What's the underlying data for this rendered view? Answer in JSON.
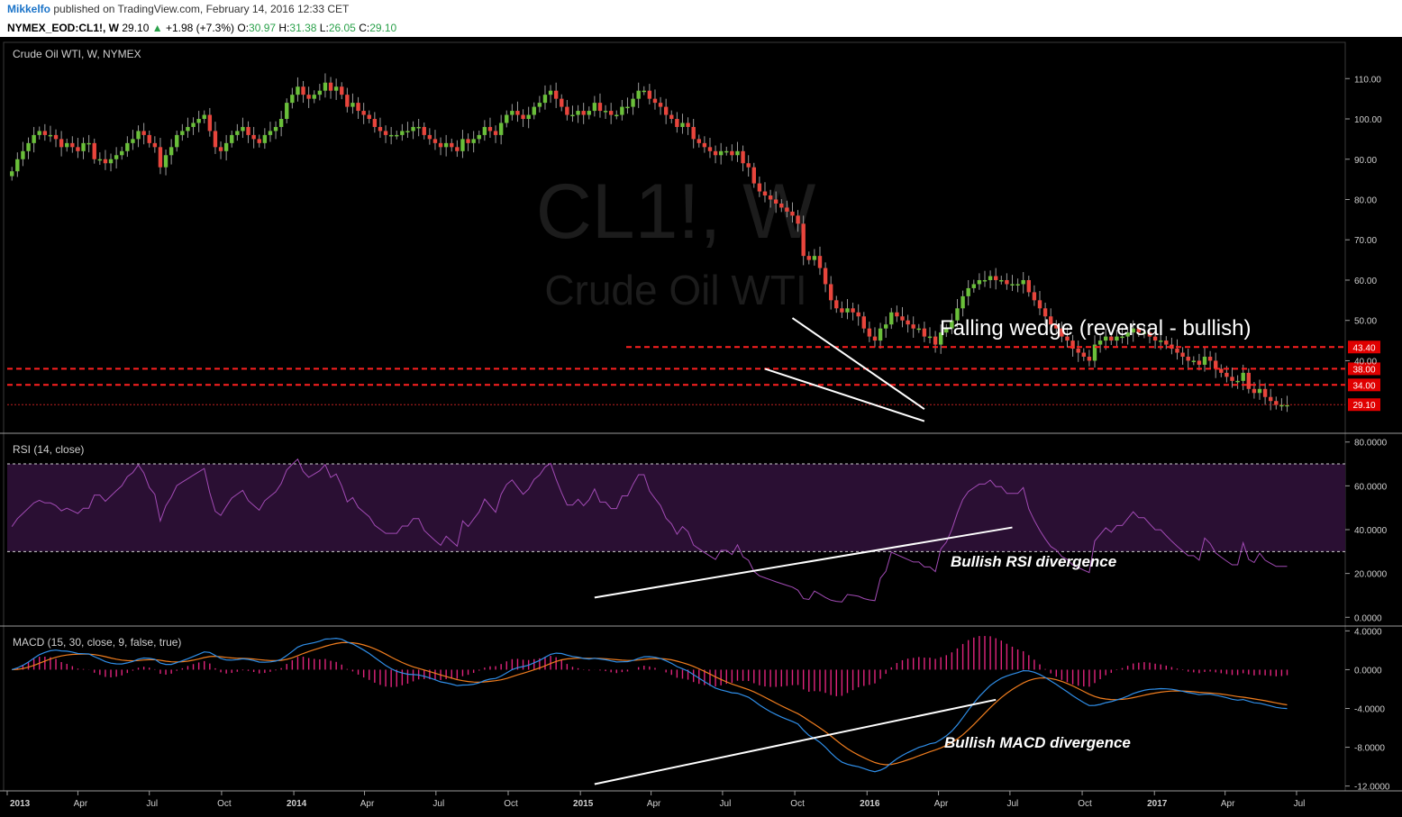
{
  "header": {
    "author": "Mikkelfo",
    "published": "published on TradingView.com, February 14, 2016 12:33 CET",
    "symbol": "NYMEX_EOD:CL1!, W",
    "last": "29.10",
    "arrow": "▲",
    "change": "+1.98 (+7.3%)",
    "o_label": "O:",
    "o_val": "30.97",
    "h_label": "H:",
    "h_val": "31.38",
    "l_label": "L:",
    "l_val": "26.05",
    "c_label": "C:",
    "c_val": "29.10"
  },
  "colors": {
    "background": "#000000",
    "up_candle": "#6abf3a",
    "down_candle": "#e8453c",
    "rsi_line": "#a24bb5",
    "rsi_band": "#2a0f33",
    "macd_line": "#2f8ee8",
    "signal_line": "#f07d1e",
    "histogram": "#e0247c",
    "level_line": "#ff2020",
    "annotation": "#ffffff"
  },
  "chart_data": [
    {
      "type": "candlestick",
      "title": "Crude Oil WTI, W, NYMEX",
      "watermark_symbol": "CL1!, W",
      "watermark_name": "Crude Oil WTI",
      "ylim": [
        22,
        119
      ],
      "y_ticks": [
        "110.00",
        "100.00",
        "90.00",
        "80.00",
        "70.00",
        "60.00",
        "50.00",
        "40.00"
      ],
      "y_tick_values": [
        110,
        100,
        90,
        80,
        70,
        60,
        50,
        40
      ],
      "x_ticks": [
        "2013",
        "Apr",
        "Jul",
        "Oct",
        "2014",
        "Apr",
        "Jul",
        "Oct",
        "2015",
        "Apr",
        "Jul",
        "Oct",
        "2016",
        "Apr",
        "Jul",
        "Oct",
        "2017",
        "Apr",
        "Jul"
      ],
      "x_tick_dates": [
        "2013-01",
        "2013-04",
        "2013-07",
        "2013-10",
        "2014-01",
        "2014-04",
        "2014-07",
        "2014-10",
        "2015-01",
        "2015-04",
        "2015-07",
        "2015-10",
        "2016-01",
        "2016-04",
        "2016-07",
        "2016-10",
        "2017-01",
        "2017-04",
        "2017-07"
      ],
      "x_tick_bold": [
        "2013",
        "2014",
        "2015",
        "2016",
        "2017"
      ],
      "weekly_close": [
        [
          87,
          90,
          92,
          94,
          96,
          97,
          96,
          96,
          95,
          93,
          94,
          93,
          92,
          94,
          94,
          90,
          90,
          89,
          90,
          91,
          92,
          94,
          95,
          97,
          96,
          94,
          93,
          88,
          91,
          93,
          96,
          97,
          98,
          99,
          100,
          101,
          97,
          93,
          92,
          94,
          96,
          97,
          98,
          96,
          95,
          94,
          96,
          97,
          98,
          100,
          104,
          106,
          108,
          106,
          105,
          106,
          107,
          109,
          107,
          108,
          106,
          103,
          104,
          102,
          101,
          100,
          98,
          97,
          96,
          96,
          96
        ],
        [
          97,
          97,
          98,
          98,
          96,
          95,
          94,
          93,
          94,
          93,
          92,
          95,
          94,
          95,
          96,
          98,
          97,
          96,
          99,
          101,
          102,
          101,
          100,
          101,
          103,
          104,
          106,
          107,
          105,
          103,
          101,
          101,
          102,
          101,
          102,
          104,
          102,
          102,
          101,
          101,
          103,
          103,
          105,
          107,
          107,
          105,
          104,
          103,
          101,
          100,
          98,
          99,
          98,
          95,
          94,
          93,
          92,
          91,
          92,
          92,
          91,
          92,
          89,
          88,
          84,
          82,
          81,
          80,
          79,
          78,
          77,
          76,
          74,
          66,
          65,
          66,
          63,
          59,
          55,
          53,
          52,
          53,
          52,
          51
        ],
        [
          48,
          46,
          45,
          48,
          49,
          52,
          51,
          50,
          49,
          48,
          48,
          46,
          46,
          44,
          47,
          48,
          50,
          53,
          56,
          58,
          59,
          60,
          60,
          61,
          60,
          60,
          59,
          59,
          59,
          60,
          57,
          55,
          53,
          51,
          49,
          48,
          46,
          45,
          43,
          42,
          41,
          40,
          44,
          45,
          46,
          45,
          46,
          46,
          47,
          48,
          47,
          47,
          46,
          45,
          45,
          44,
          43,
          42,
          41,
          40,
          40,
          39,
          41,
          40,
          38,
          37,
          36,
          35,
          35,
          37,
          33,
          32,
          33,
          31,
          30,
          29,
          29,
          29
        ]
      ],
      "last_price": "29.10",
      "levels": [
        {
          "value": 43.4,
          "label": "43.40"
        },
        {
          "value": 38.0,
          "label": "38.00"
        },
        {
          "value": 34.0,
          "label": "34.00"
        },
        {
          "value": 29.1,
          "label": "29.10"
        }
      ],
      "wedge_upper": [
        [
          "2015-09-28",
          50.6
        ],
        [
          "2016-03-14",
          28.0
        ]
      ],
      "wedge_lower": [
        [
          "2015-08-24",
          38.0
        ],
        [
          "2016-03-14",
          25.0
        ]
      ],
      "annotation": "Falling wedge (reversal - bullish)"
    },
    {
      "type": "line",
      "title": "RSI (14, close)",
      "ylim": [
        -4,
        84
      ],
      "y_ticks": [
        "80.0000",
        "60.0000",
        "40.0000",
        "20.0000",
        "0.0000"
      ],
      "y_tick_values": [
        80,
        60,
        40,
        20,
        0
      ],
      "band": [
        30,
        70
      ],
      "divergence_line": [
        [
          "2015-01-19",
          9
        ],
        [
          "2016-07-04",
          41
        ]
      ],
      "annotation": "Bullish RSI divergence"
    },
    {
      "type": "line",
      "title": "MACD (15, 30, close, 9, false, true)",
      "ylim": [
        -12.5,
        4.5
      ],
      "y_ticks": [
        "4.0000",
        "0.0000",
        "-4.0000",
        "-8.0000",
        "-12.0000"
      ],
      "y_tick_values": [
        4,
        0,
        -4,
        -8,
        -12
      ],
      "series": [
        {
          "name": "",
          "type": "line"
        },
        {
          "name": "",
          "type": "line"
        },
        {
          "name": "",
          "type": "histogram"
        }
      ],
      "divergence_line": [
        [
          "2015-01-19",
          -11.8
        ],
        [
          "2016-06-13",
          -3.1
        ]
      ],
      "annotation": "Bullish MACD divergence"
    }
  ]
}
